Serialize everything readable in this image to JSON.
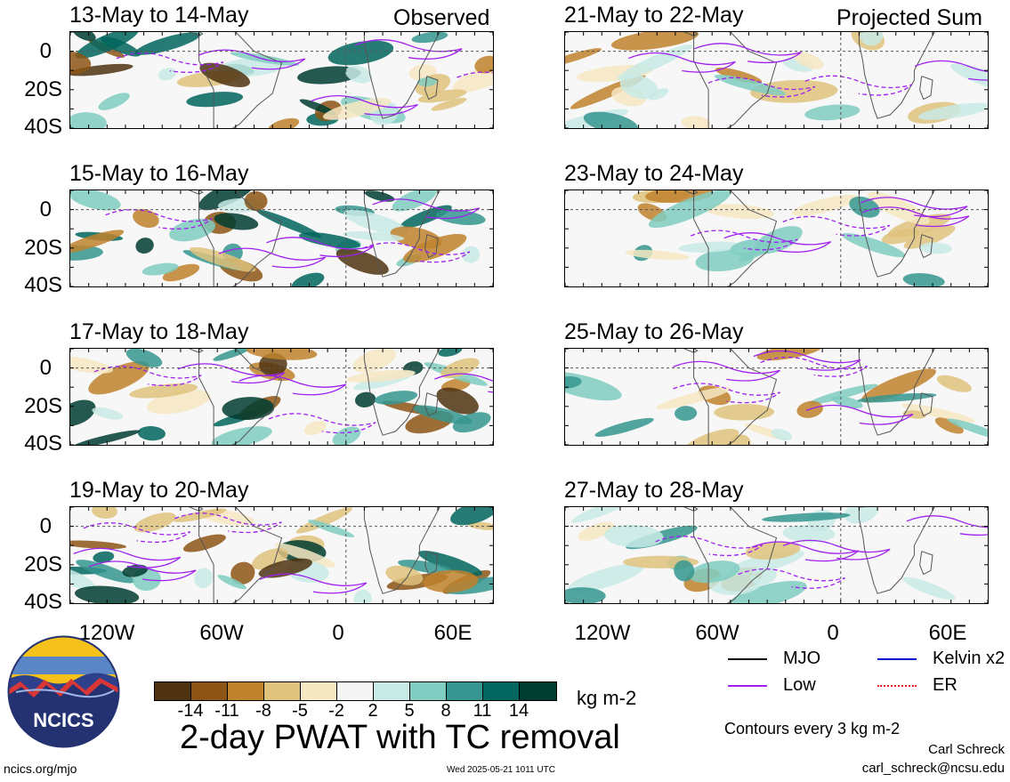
{
  "panels": [
    {
      "id": "p1",
      "title": "13-May to 14-May",
      "note": "Observed"
    },
    {
      "id": "p2",
      "title": "15-May to 16-May",
      "note": ""
    },
    {
      "id": "p3",
      "title": "17-May to 18-May",
      "note": ""
    },
    {
      "id": "p4",
      "title": "19-May to 20-May",
      "note": ""
    },
    {
      "id": "p5",
      "title": "21-May to 22-May",
      "note": "Projected Sum"
    },
    {
      "id": "p6",
      "title": "23-May to 24-May",
      "note": ""
    },
    {
      "id": "p7",
      "title": "25-May to 26-May",
      "note": ""
    },
    {
      "id": "p8",
      "title": "27-May to 28-May",
      "note": ""
    }
  ],
  "lat_labels": [
    "0",
    "20S",
    "40S"
  ],
  "lon_labels": [
    "120W",
    "60W",
    "0",
    "60E"
  ],
  "colorbar": {
    "colors": [
      "#4f3310",
      "#8c5514",
      "#bf822d",
      "#dfc27c",
      "#f6e8c3",
      "#f5f5f5",
      "#c8eae5",
      "#80cdc1",
      "#35978f",
      "#01665e",
      "#003c30"
    ],
    "ticks": [
      "-14",
      "-11",
      "-8",
      "-5",
      "-2",
      "2",
      "5",
      "8",
      "11",
      "14"
    ],
    "units": "kg m-2"
  },
  "title": "2-day PWAT with TC removal",
  "legend": [
    {
      "label": "MJO",
      "color": "#000000"
    },
    {
      "label": "Kelvin x2",
      "color": "#0000cc"
    },
    {
      "label": "Low",
      "color": "#a020f0"
    },
    {
      "label": "ER",
      "color": "#dd2222"
    }
  ],
  "contour_note": "Contours every 3 kg m-2",
  "author": "Carl Schreck",
  "email": "carl_schreck@ncsu.edu",
  "site": "ncics.org/mjo",
  "timestamp": "Wed 2025-05-21 1011 UTC",
  "logo_text": "NCICS"
}
